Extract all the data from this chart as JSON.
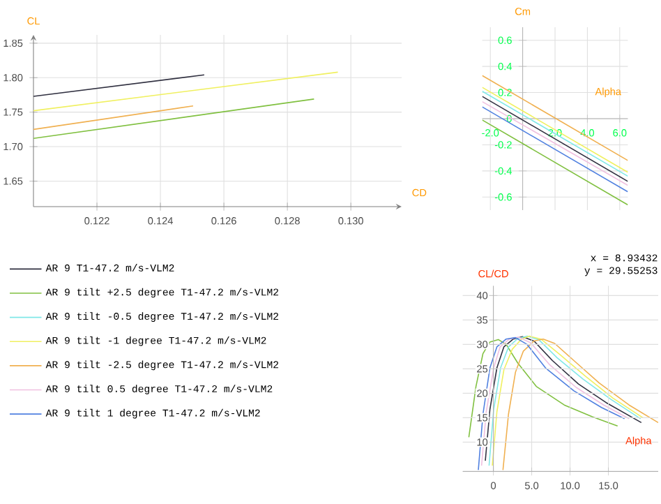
{
  "chart_data": [
    {
      "type": "line",
      "xlabel": "CD",
      "ylabel": "CL",
      "xlim": [
        0.12,
        0.1316
      ],
      "ylim": [
        1.613,
        1.862
      ],
      "xticks": [
        0.122,
        0.124,
        0.126,
        0.128,
        {
          "value": 0.13,
          "label": "0.130"
        }
      ],
      "yticks": [
        {
          "value": 1.65,
          "label": "1.65"
        },
        {
          "value": 1.7,
          "label": "1.70"
        },
        {
          "value": 1.75,
          "label": "1.75"
        },
        {
          "value": 1.8,
          "label": "1.80"
        },
        {
          "value": 1.85,
          "label": "1.85"
        }
      ],
      "grid": true,
      "series": [
        {
          "color": "#303040",
          "x": [
            0.12,
            0.12538
          ],
          "values": [
            1.773,
            1.804
          ]
        },
        {
          "color": "#f0f060",
          "x": [
            0.12,
            0.12959
          ],
          "values": [
            1.752,
            1.808
          ]
        },
        {
          "color": "#f0b050",
          "x": [
            0.12,
            0.12503
          ],
          "values": [
            1.725,
            1.759
          ]
        },
        {
          "color": "#80c040",
          "x": [
            0.12,
            0.12884
          ],
          "values": [
            1.712,
            1.769
          ]
        }
      ]
    },
    {
      "type": "line",
      "xlabel": "Alpha",
      "ylabel": "Cm",
      "xlim": [
        -2.5,
        6.5
      ],
      "ylim": [
        -0.7,
        0.7
      ],
      "xticks": [
        {
          "value": -2,
          "label": "-2.0"
        },
        {
          "value": 2,
          "label": "2.0"
        },
        {
          "value": 4,
          "label": "4.0"
        },
        {
          "value": 6,
          "label": "6.0"
        }
      ],
      "yticks": [
        -0.6,
        -0.4,
        -0.2,
        0,
        0.2,
        0.4,
        0.6
      ],
      "grid": true,
      "series": [
        {
          "color": "#303040",
          "x": [
            -2.5,
            6.5
          ],
          "values": [
            0.17,
            -0.48
          ]
        },
        {
          "color": "#80c040",
          "x": [
            -2.5,
            6.5
          ],
          "values": [
            -0.01,
            -0.66
          ]
        },
        {
          "color": "#80e8e8",
          "x": [
            -2.5,
            6.5
          ],
          "values": [
            0.21,
            -0.44
          ]
        },
        {
          "color": "#f0f060",
          "x": [
            -2.5,
            6.5
          ],
          "values": [
            0.24,
            -0.41
          ]
        },
        {
          "color": "#f0b050",
          "x": [
            -2.5,
            6.5
          ],
          "values": [
            0.33,
            -0.32
          ]
        },
        {
          "color": "#f0c0e0",
          "x": [
            -2.5,
            6.5
          ],
          "values": [
            0.13,
            -0.51
          ]
        },
        {
          "color": "#5080e0",
          "x": [
            -2.5,
            6.5
          ],
          "values": [
            0.09,
            -0.56
          ]
        }
      ]
    },
    {
      "type": "line",
      "xlabel": "Alpha",
      "ylabel": "CL/CD",
      "xlim": [
        -4,
        21.5
      ],
      "ylim": [
        4,
        42
      ],
      "xticks": [
        0,
        {
          "value": 5,
          "label": "5.0"
        },
        {
          "value": 10,
          "label": "10.0"
        },
        {
          "value": 15,
          "label": "15.0"
        }
      ],
      "yticks": [
        10,
        15,
        20,
        25,
        30,
        35,
        40
      ],
      "grid": true,
      "legend": "left",
      "annotations": [
        "x =   8.93432",
        "y =  29.55253"
      ],
      "series": [
        {
          "name": "AR 9 T1-47.2 m/s-VLM2",
          "color": "#303040",
          "x": [
            -1.05,
            -0.45,
            0.46,
            1.37,
            2.6,
            3.8,
            5.3,
            7.7,
            11.1,
            14.7,
            19.3
          ],
          "values": [
            6.2,
            16.7,
            25.2,
            29.5,
            31.1,
            31.6,
            30.7,
            26.7,
            21.9,
            18.1,
            14.0
          ]
        },
        {
          "name": "AR 9 tilt +2.5 degree T1-47.2 m/s-VLM2",
          "color": "#80c040",
          "x": [
            -3.2,
            -2.27,
            -1.36,
            -0.45,
            0.64,
            1.67,
            3.18,
            5.6,
            9.25,
            12.9,
            16.2
          ],
          "values": [
            11.0,
            21.4,
            28.1,
            30.5,
            31.0,
            30.0,
            26.2,
            21.4,
            17.6,
            15.2,
            13.3
          ]
        },
        {
          "name": "AR 9 tilt -0.5 degree T1-47.2 m/s-VLM2",
          "color": "#80e8e8",
          "x": [
            -0.56,
            0.04,
            0.94,
            1.98,
            3.18,
            4.4,
            5.9,
            8.3,
            11.7,
            15.3,
            19.2
          ],
          "values": [
            5.2,
            16.7,
            25.2,
            29.5,
            31.2,
            31.7,
            31.0,
            27.3,
            22.9,
            18.8,
            14.8
          ]
        },
        {
          "name": "AR 9 tilt -1 degree T1-47.2 m/s-VLM2",
          "color": "#f0f060",
          "x": [
            -0.14,
            0.46,
            1.37,
            2.46,
            3.67,
            4.7,
            6.2,
            8.7,
            12.0,
            15.6,
            19.5
          ],
          "values": [
            5.2,
            16.2,
            24.8,
            29.0,
            31.1,
            31.7,
            31.1,
            27.9,
            23.5,
            19.0,
            15.0
          ]
        },
        {
          "name": "AR 9 tilt -2.5 degree T1-47.2 m/s-VLM2",
          "color": "#f0b050",
          "x": [
            1.25,
            1.97,
            2.88,
            3.9,
            5.3,
            6.5,
            8.0,
            10.5,
            13.8,
            17.7,
            21.5
          ],
          "values": [
            4.3,
            15.7,
            24.3,
            28.6,
            30.7,
            31.1,
            30.2,
            26.7,
            22.1,
            17.6,
            14.0
          ]
        },
        {
          "name": "AR 9 tilt 0.5 degree T1-47.2 m/s-VLM2",
          "color": "#f0c0e0",
          "x": [
            -1.54,
            -0.93,
            0.04,
            0.88,
            2.1,
            3.3,
            4.9,
            7.3,
            10.8,
            14.4,
            17.7
          ],
          "values": [
            5.2,
            16.2,
            25.2,
            29.5,
            31.1,
            31.5,
            30.3,
            25.9,
            21.2,
            17.6,
            14.8
          ]
        },
        {
          "name": "AR 9 tilt 1 degree T1-47.2 m/s-VLM2",
          "color": "#5080e0",
          "x": [
            -1.96,
            -1.36,
            -0.45,
            0.46,
            1.67,
            2.88,
            4.4,
            6.8,
            10.5,
            14.1,
            17.1
          ],
          "values": [
            4.3,
            15.7,
            25.2,
            29.5,
            31.1,
            31.4,
            30.0,
            25.2,
            20.5,
            17.1,
            14.8
          ]
        }
      ]
    }
  ]
}
